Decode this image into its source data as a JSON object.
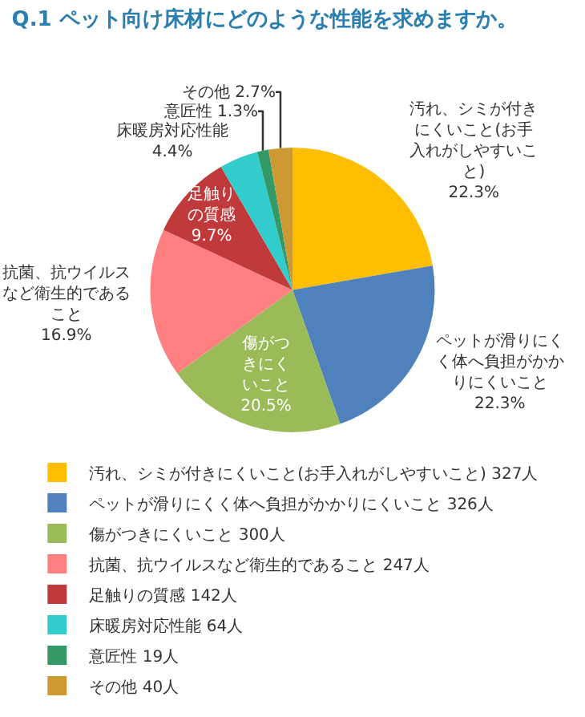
{
  "chart_data": {
    "type": "pie",
    "title": "Q.1 ペット向け床材にどのような性能を求めますか。",
    "categories": [
      "汚れ、シミが付きにくいこと(お手入れがしやすいこと) 327人",
      "ペットが滑りにくく体へ負担がかかりにくいこと 326人",
      "傷がつきにくいこと 300人",
      "抗菌、抗ウイルスなど衛生的であること 247人",
      "足触りの質感 142人",
      "床暖房対応性能 64人",
      "意匠性 19人",
      "その他 40人"
    ],
    "values": [
      22.3,
      22.3,
      20.5,
      16.9,
      9.7,
      4.4,
      1.3,
      2.7
    ],
    "colors": [
      "#ffbf00",
      "#4f81bd",
      "#9bbb59",
      "#ff8080",
      "#c0393b",
      "#33cccc",
      "#339966",
      "#cc9933"
    ],
    "value_labels": [
      "汚れ、シミが付きにくいこと(お手入れがしやすいこと) 22.3%",
      "ペットが滑りにくく体へ負担がかかりにくいこと 22.3%",
      "傷がつきにくいこと 20.5%",
      "抗菌、抗ウイルスなど衛生的であること 16.9%",
      "足触りの質感 9.7%",
      "床暖房対応性能 4.4%",
      "意匠性 1.3%",
      "その他 2.7%"
    ],
    "legend": "bottom"
  }
}
